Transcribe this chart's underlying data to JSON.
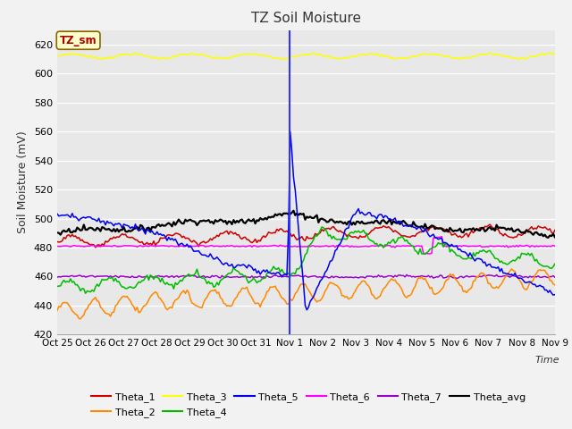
{
  "title": "TZ Soil Moisture",
  "ylabel": "Soil Moisture (mV)",
  "xlabel": "Time",
  "ylim": [
    420,
    630
  ],
  "yticks": [
    420,
    440,
    460,
    480,
    500,
    520,
    540,
    560,
    580,
    600,
    620
  ],
  "bg_color": "#e8e8e8",
  "grid_color": "#ffffff",
  "fig_color": "#f2f2f2",
  "vline_x": 7,
  "x_labels": [
    "Oct 25",
    "Oct 26",
    "Oct 27",
    "Oct 28",
    "Oct 29",
    "Oct 30",
    "Oct 31",
    "Nov 1",
    "Nov 2",
    "Nov 3",
    "Nov 4",
    "Nov 5",
    "Nov 6",
    "Nov 7",
    "Nov 8",
    "Nov 9"
  ],
  "colors": {
    "Theta_1": "#cc0000",
    "Theta_2": "#ff8800",
    "Theta_3": "#ffff00",
    "Theta_4": "#00bb00",
    "Theta_5": "#0000ee",
    "Theta_6": "#ff00ff",
    "Theta_7": "#9900cc",
    "Theta_avg": "#000000"
  },
  "legend_box": {
    "text": "TZ_sm",
    "facecolor": "#ffffcc",
    "edgecolor": "#886600",
    "textcolor": "#aa0000"
  },
  "n_points": 300
}
